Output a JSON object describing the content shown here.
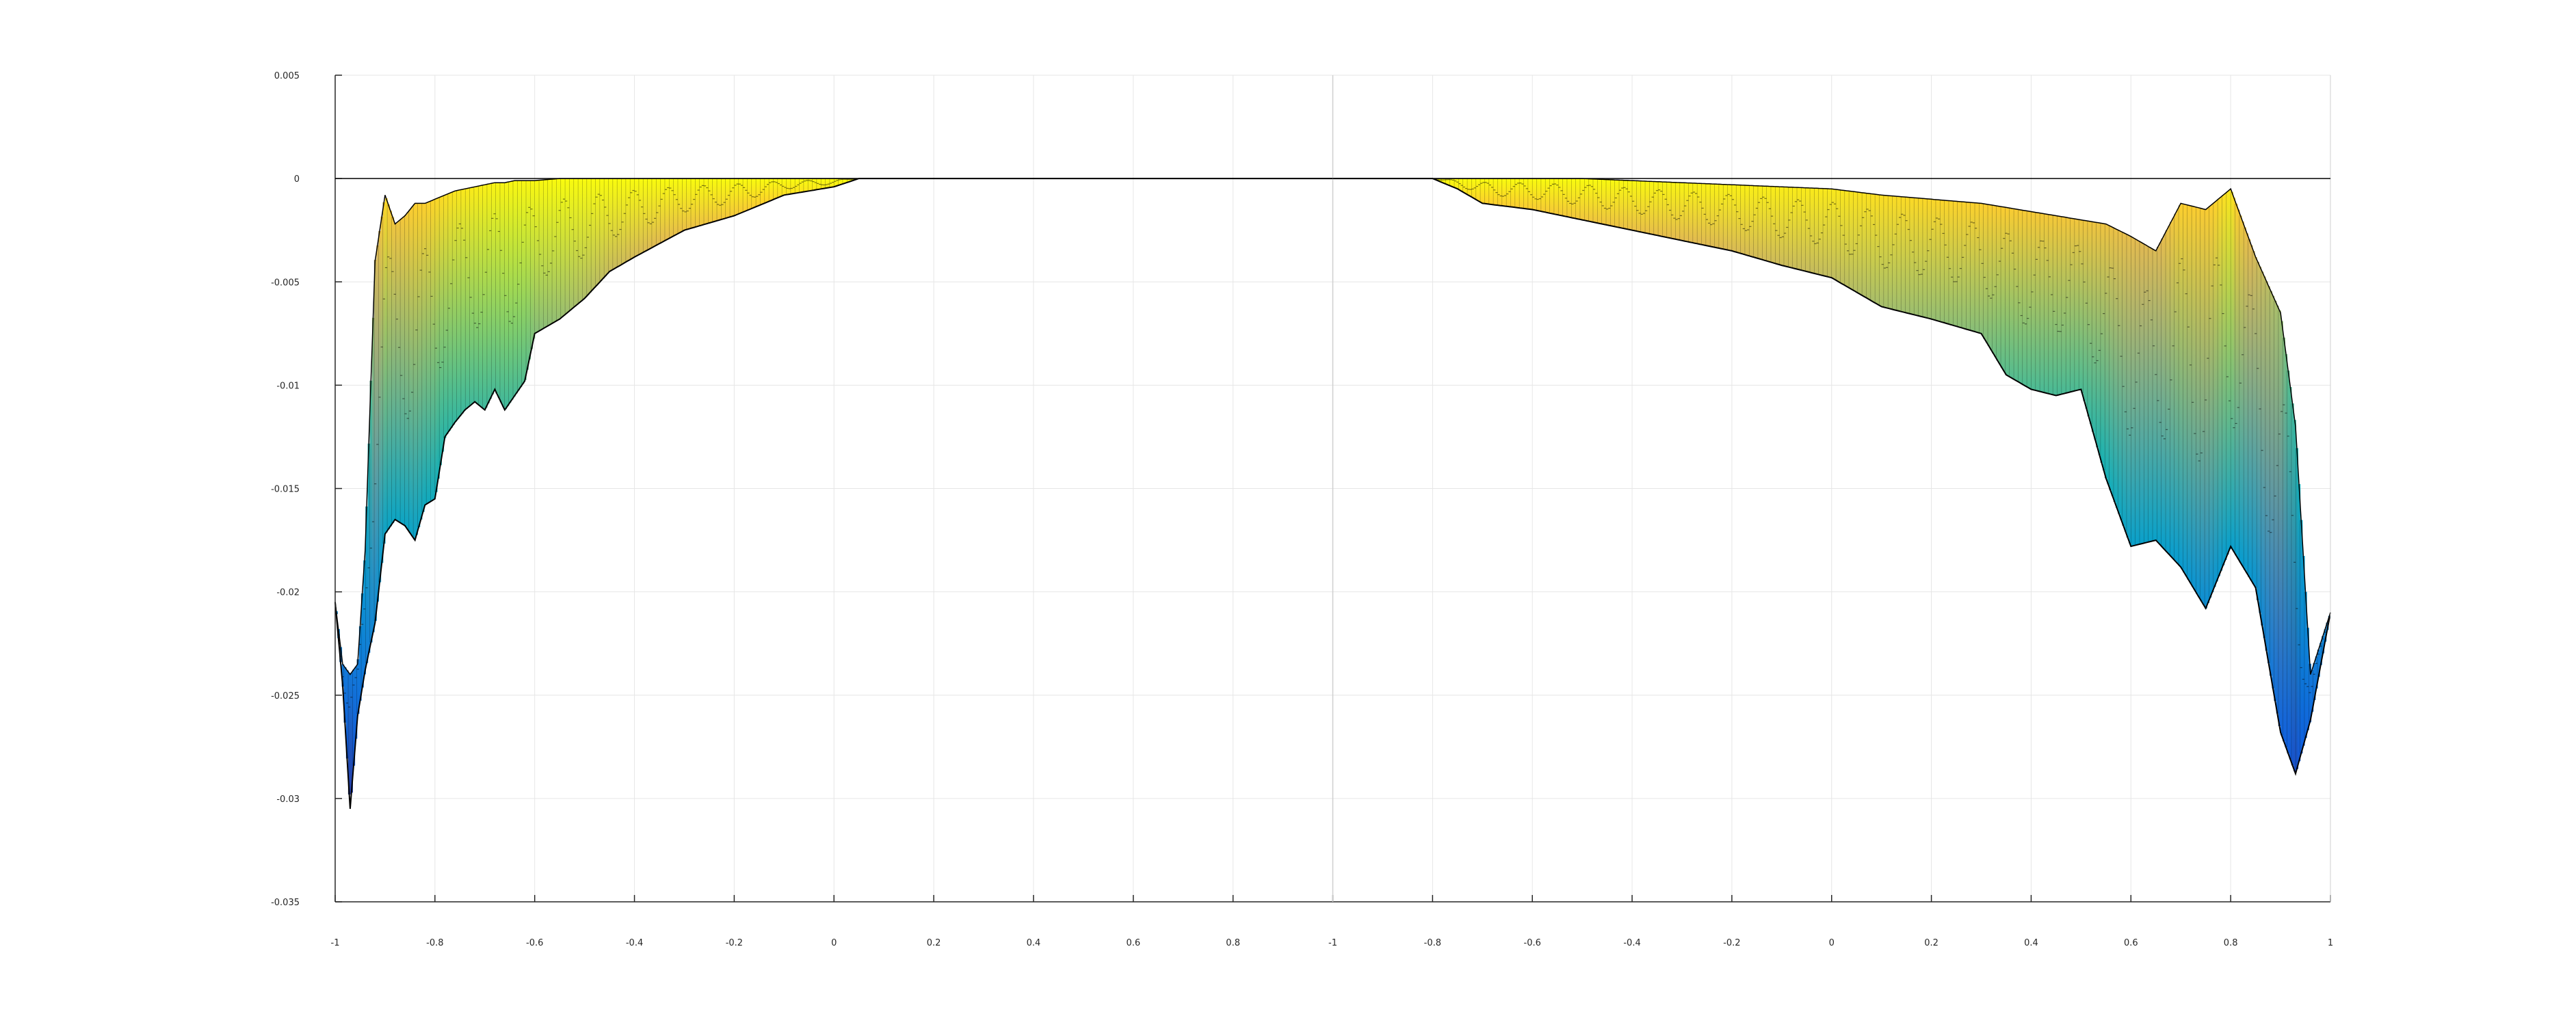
{
  "chart_data": {
    "type": "surface",
    "title": "",
    "xlabel": "",
    "ylabel": "",
    "ylim": [
      -0.035,
      0.005
    ],
    "grid": true,
    "colormap": "parula",
    "edge_color": "#000000",
    "y_ticks": [
      0.005,
      0,
      -0.005,
      -0.01,
      -0.015,
      -0.02,
      -0.025,
      -0.03,
      -0.035
    ],
    "y_tick_labels": [
      "0.005",
      "0",
      "-0.005",
      "-0.01",
      "-0.015",
      "-0.02",
      "-0.025",
      "-0.03",
      "-0.035"
    ],
    "panels": [
      {
        "x_range": [
          -1,
          1
        ],
        "x_ticks": [
          -1,
          -0.8,
          -0.6,
          -0.4,
          -0.2,
          0,
          0.2,
          0.4,
          0.6,
          0.8
        ],
        "x_tick_labels": [
          "-1",
          "-0.8",
          "-0.6",
          "-0.4",
          "-0.2",
          "0",
          "0.2",
          "0.4",
          "0.6",
          "0.8"
        ],
        "envelope": {
          "x": [
            -1,
            -0.985,
            -0.97,
            -0.955,
            -0.94,
            -0.92,
            -0.9,
            -0.88,
            -0.86,
            -0.84,
            -0.82,
            -0.8,
            -0.78,
            -0.76,
            -0.74,
            -0.72,
            -0.7,
            -0.68,
            -0.66,
            -0.64,
            -0.62,
            -0.6,
            -0.55,
            -0.5,
            -0.45,
            -0.4,
            -0.3,
            -0.2,
            -0.1,
            0,
            0.05,
            0.1,
            1
          ],
          "min": [
            -0.0205,
            -0.0245,
            -0.0305,
            -0.026,
            -0.0238,
            -0.0215,
            -0.0172,
            -0.0165,
            -0.0168,
            -0.0175,
            -0.0158,
            -0.0155,
            -0.0125,
            -0.0118,
            -0.0112,
            -0.0108,
            -0.0112,
            -0.0102,
            -0.0112,
            -0.0105,
            -0.0098,
            -0.0075,
            -0.0068,
            -0.0058,
            -0.0045,
            -0.0038,
            -0.0025,
            -0.0018,
            -0.0008,
            -0.0004,
            0,
            0,
            0
          ],
          "max": [
            -0.0205,
            -0.0235,
            -0.024,
            -0.0235,
            -0.018,
            -0.004,
            -0.0008,
            -0.0022,
            -0.0018,
            -0.0012,
            -0.0012,
            -0.001,
            -0.0008,
            -0.0006,
            -0.0005,
            -0.0004,
            -0.0003,
            -0.0002,
            -0.0002,
            -0.0001,
            -0.0001,
            -0.0001,
            0,
            0,
            0,
            0,
            0,
            0,
            0,
            0,
            0,
            0,
            0
          ]
        }
      },
      {
        "x_range": [
          -1,
          1
        ],
        "x_ticks": [
          -1,
          -0.8,
          -0.6,
          -0.4,
          -0.2,
          0,
          0.2,
          0.4,
          0.6,
          0.8,
          1
        ],
        "x_tick_labels": [
          "-1",
          "-0.8",
          "-0.6",
          "-0.4",
          "-0.2",
          "0",
          "0.2",
          "0.4",
          "0.6",
          "0.8",
          "1"
        ],
        "envelope": {
          "x": [
            -1,
            -0.8,
            -0.75,
            -0.7,
            -0.6,
            -0.5,
            -0.4,
            -0.3,
            -0.2,
            -0.1,
            0,
            0.1,
            0.2,
            0.3,
            0.35,
            0.4,
            0.45,
            0.5,
            0.55,
            0.6,
            0.65,
            0.7,
            0.75,
            0.8,
            0.85,
            0.9,
            0.93,
            0.96,
            1
          ],
          "min": [
            0,
            0,
            -0.0005,
            -0.0012,
            -0.0015,
            -0.002,
            -0.0025,
            -0.003,
            -0.0035,
            -0.0042,
            -0.0048,
            -0.0062,
            -0.0068,
            -0.0075,
            -0.0095,
            -0.0102,
            -0.0105,
            -0.0102,
            -0.0145,
            -0.0178,
            -0.0175,
            -0.0188,
            -0.0208,
            -0.0178,
            -0.0198,
            -0.0268,
            -0.0288,
            -0.0262,
            -0.021
          ],
          "max": [
            0,
            0,
            0,
            0,
            0,
            0,
            -0.0001,
            -0.0002,
            -0.0003,
            -0.0004,
            -0.0005,
            -0.0008,
            -0.001,
            -0.0012,
            -0.0014,
            -0.0016,
            -0.0018,
            -0.002,
            -0.0022,
            -0.0028,
            -0.0035,
            -0.0012,
            -0.0015,
            -0.0005,
            -0.0038,
            -0.0065,
            -0.012,
            -0.024,
            -0.021
          ]
        }
      }
    ]
  }
}
